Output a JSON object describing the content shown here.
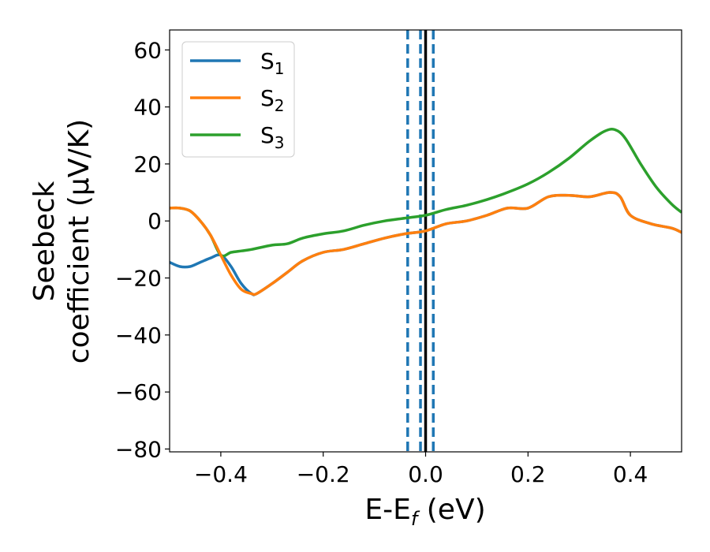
{
  "chart_data": {
    "type": "line",
    "xlabel": "E-E",
    "xlabel_sub": "f",
    "xlabel_unit": " (eV)",
    "ylabel_line1": "Seebeck",
    "ylabel_line2": "coefficient  (μV/K)",
    "xlim": [
      -0.5,
      0.5
    ],
    "ylim": [
      -81,
      67
    ],
    "xticks": [
      -0.4,
      -0.2,
      0.0,
      0.2,
      0.4
    ],
    "xtick_labels": [
      "−0.4",
      "−0.2",
      "0.0",
      "0.2",
      "0.4"
    ],
    "yticks": [
      60,
      40,
      20,
      0,
      -20,
      -40,
      -60,
      -80
    ],
    "ytick_labels": [
      "60",
      "40",
      "20",
      "0",
      "−20",
      "−40",
      "−60",
      "−80"
    ],
    "grid": false,
    "legend_position": "top-left",
    "vlines": [
      {
        "x": 0.0,
        "style": "solid",
        "color": "#000000"
      },
      {
        "x": -0.035,
        "style": "dashed",
        "color": "#1f77b4"
      },
      {
        "x": -0.01,
        "style": "dashed",
        "color": "#1f77b4"
      },
      {
        "x": 0.015,
        "style": "dashed",
        "color": "#1f77b4"
      }
    ],
    "series": [
      {
        "name": "S",
        "sub": "1",
        "color": "#1f77b4",
        "x": [
          -0.5,
          -0.48,
          -0.46,
          -0.44,
          -0.42,
          -0.4,
          -0.38,
          -0.36,
          -0.34,
          -0.33,
          -0.3,
          -0.27,
          -0.24,
          -0.2,
          -0.16,
          -0.12,
          -0.08,
          -0.04,
          0.0,
          0.04,
          0.08,
          0.12,
          0.16,
          0.2,
          0.24,
          0.28,
          0.32,
          0.36,
          0.38,
          0.4,
          0.44,
          0.48,
          0.5
        ],
        "y": [
          -14.5,
          -16,
          -16,
          -14.5,
          -13,
          -12,
          -16,
          -22,
          -25.5,
          -25.5,
          -22,
          -18,
          -14,
          -11,
          -10,
          -8,
          -6,
          -4.5,
          -3.5,
          -1,
          0,
          2,
          4.5,
          4.5,
          8.5,
          9,
          8.5,
          10,
          8.5,
          2,
          -1,
          -2.5,
          -4
        ]
      },
      {
        "name": "S",
        "sub": "2",
        "color": "#ff7f0e",
        "x": [
          -0.5,
          -0.48,
          -0.46,
          -0.44,
          -0.42,
          -0.4,
          -0.38,
          -0.36,
          -0.34,
          -0.33,
          -0.3,
          -0.27,
          -0.24,
          -0.2,
          -0.16,
          -0.12,
          -0.08,
          -0.04,
          0.0,
          0.04,
          0.08,
          0.12,
          0.16,
          0.2,
          0.24,
          0.28,
          0.32,
          0.36,
          0.38,
          0.4,
          0.44,
          0.48,
          0.5
        ],
        "y": [
          4.5,
          4.5,
          3.5,
          0,
          -5,
          -12,
          -19,
          -24,
          -25.5,
          -25.5,
          -22,
          -18,
          -14,
          -11,
          -10,
          -8,
          -6,
          -4.5,
          -3.5,
          -1,
          0,
          2,
          4.5,
          4.5,
          8.5,
          9,
          8.5,
          10,
          8.5,
          2,
          -1,
          -2.5,
          -4
        ]
      },
      {
        "name": "S",
        "sub": "3",
        "color": "#2ca02c",
        "x": [
          -0.5,
          -0.48,
          -0.46,
          -0.44,
          -0.42,
          -0.4,
          -0.38,
          -0.36,
          -0.34,
          -0.3,
          -0.27,
          -0.24,
          -0.2,
          -0.16,
          -0.12,
          -0.08,
          -0.04,
          0.0,
          0.04,
          0.08,
          0.12,
          0.16,
          0.2,
          0.24,
          0.28,
          0.32,
          0.35,
          0.37,
          0.39,
          0.42,
          0.45,
          0.48,
          0.5
        ],
        "y": [
          4.5,
          4.5,
          3.5,
          0,
          -5,
          -12,
          -11,
          -10.5,
          -10,
          -8.5,
          -8,
          -6,
          -4.5,
          -3.5,
          -1.5,
          0,
          1,
          2,
          4,
          5.5,
          7.5,
          10,
          13,
          17,
          22,
          28,
          31.5,
          32,
          29,
          20,
          12,
          6,
          3
        ]
      }
    ]
  }
}
